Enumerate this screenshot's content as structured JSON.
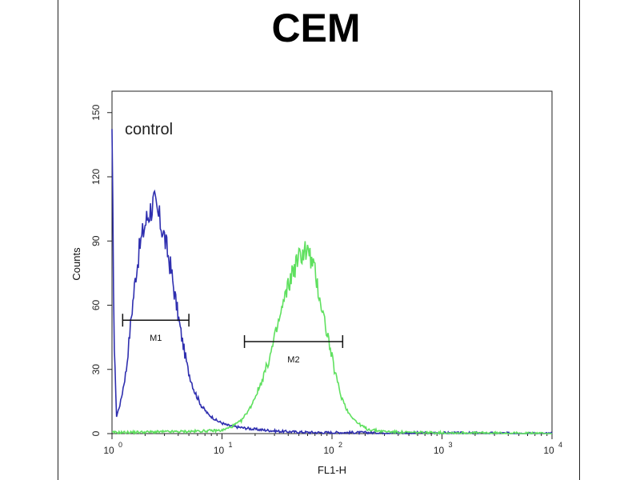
{
  "chart_data": {
    "type": "histogram",
    "title": "CEM",
    "xlabel": "FL1-H",
    "ylabel": "Counts",
    "xscale": "log",
    "xlim": [
      1,
      10000
    ],
    "ylim": [
      0,
      160
    ],
    "y_ticks": [
      0,
      30,
      60,
      90,
      120,
      150
    ],
    "x_ticks": [
      {
        "value": 1,
        "base": "10",
        "exp": "0"
      },
      {
        "value": 10,
        "base": "10",
        "exp": "1"
      },
      {
        "value": 100,
        "base": "10",
        "exp": "2"
      },
      {
        "value": 1000,
        "base": "10",
        "exp": "3"
      },
      {
        "value": 10000,
        "base": "10",
        "exp": "4"
      }
    ],
    "annotation": "control",
    "colors": {
      "control": "#2f2faf",
      "sample": "#5fe05f"
    },
    "series": [
      {
        "key": "control",
        "x": [
          1.0,
          1.05,
          1.1,
          1.2,
          1.35,
          1.5,
          1.65,
          1.8,
          2.0,
          2.2,
          2.4,
          2.55,
          2.7,
          2.9,
          3.1,
          3.4,
          3.8,
          4.3,
          4.9,
          5.6,
          6.5,
          7.5,
          9,
          11,
          14,
          20,
          35,
          70,
          150,
          10000
        ],
        "y": [
          135,
          40,
          8,
          15,
          30,
          55,
          75,
          88,
          98,
          104,
          108,
          104,
          100,
          95,
          88,
          78,
          62,
          45,
          30,
          20,
          13,
          9,
          6,
          4,
          3,
          2,
          1,
          0.5,
          0.5,
          0
        ]
      },
      {
        "key": "sample",
        "x": [
          1,
          5,
          10,
          12,
          15,
          18,
          22,
          27,
          32,
          38,
          44,
          50,
          56,
          62,
          70,
          80,
          92,
          105,
          120,
          140,
          170,
          210,
          300,
          500,
          10000
        ],
        "y": [
          0.5,
          1,
          1.5,
          3,
          6,
          12,
          22,
          35,
          50,
          65,
          76,
          82,
          86,
          84,
          75,
          60,
          45,
          30,
          18,
          10,
          5,
          2,
          1,
          0.5,
          0
        ]
      }
    ],
    "markers": [
      {
        "label": "M1",
        "x_start": 1.25,
        "x_end": 5.0,
        "y": 53
      },
      {
        "label": "M2",
        "x_start": 16,
        "x_end": 125,
        "y": 43
      }
    ]
  }
}
